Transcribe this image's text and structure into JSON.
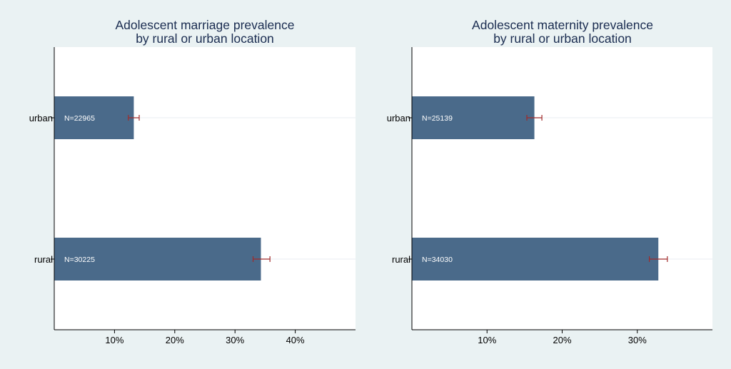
{
  "colors": {
    "background": "#eaf2f3",
    "plot_background": "#ffffff",
    "bar": "#4a6a8a",
    "error_bar": "#a02a2a",
    "title": "#1a2c50",
    "text": "#000000"
  },
  "chart_data": [
    {
      "type": "bar",
      "orientation": "horizontal",
      "title": "Adolescent marriage prevalence\nby rural or urban location",
      "xlabel": "",
      "ylabel": "",
      "categories": [
        "urban",
        "rural"
      ],
      "values": [
        13.2,
        34.3
      ],
      "ci_low": [
        12.3,
        33.0
      ],
      "ci_high": [
        14.1,
        35.8
      ],
      "bar_labels": [
        "N=22965",
        "N=30225"
      ],
      "xlim": [
        0,
        50
      ],
      "xticks": [
        10,
        20,
        30,
        40
      ],
      "xtick_labels": [
        "10%",
        "20%",
        "30%",
        "40%"
      ],
      "grid": true
    },
    {
      "type": "bar",
      "orientation": "horizontal",
      "title": "Adolescent maternity prevalence\nby rural or urban location",
      "xlabel": "",
      "ylabel": "",
      "categories": [
        "urban",
        "rural"
      ],
      "values": [
        16.3,
        32.8
      ],
      "ci_low": [
        15.3,
        31.6
      ],
      "ci_high": [
        17.3,
        34.0
      ],
      "bar_labels": [
        "N=25139",
        "N=34030"
      ],
      "xlim": [
        0,
        40
      ],
      "xticks": [
        10,
        20,
        30
      ],
      "xtick_labels": [
        "10%",
        "20%",
        "30%"
      ],
      "grid": true
    }
  ]
}
